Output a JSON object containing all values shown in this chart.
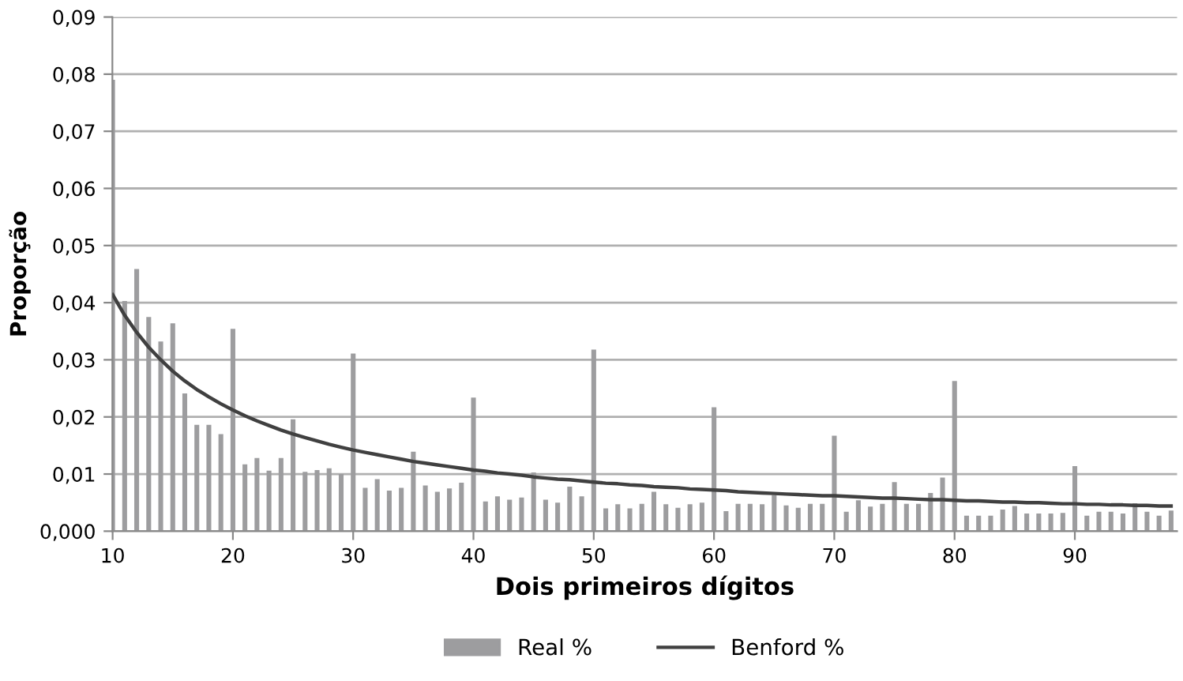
{
  "chart_data": {
    "type": "bar",
    "xlabel": "Dois primeiros dígitos",
    "ylabel": "Proporção",
    "categories": [
      "10",
      null,
      null,
      null,
      null,
      null,
      null,
      null,
      null,
      null,
      "20",
      null,
      null,
      null,
      null,
      null,
      null,
      null,
      null,
      null,
      "30",
      null,
      null,
      null,
      null,
      null,
      null,
      null,
      null,
      null,
      "40",
      null,
      null,
      null,
      null,
      null,
      null,
      null,
      null,
      null,
      "50",
      null,
      null,
      null,
      null,
      null,
      null,
      null,
      null,
      null,
      "60",
      null,
      null,
      null,
      null,
      null,
      null,
      null,
      null,
      null,
      "70",
      null,
      null,
      null,
      null,
      null,
      null,
      null,
      null,
      null,
      "80",
      null,
      null,
      null,
      null,
      null,
      null,
      null,
      null,
      null,
      "90",
      null,
      null,
      null,
      null,
      null,
      null,
      null,
      null
    ],
    "series": [
      {
        "name": "Real %",
        "color": "#9d9d9f",
        "values": [
          0.079,
          0.0403,
          0.0459,
          0.0375,
          0.0332,
          0.0364,
          0.0241,
          0.0186,
          0.0186,
          0.017,
          0.0354,
          0.0117,
          0.0128,
          0.0106,
          0.0128,
          0.0196,
          0.0104,
          0.0107,
          0.011,
          0.01,
          0.0311,
          0.0076,
          0.0091,
          0.0071,
          0.0076,
          0.0139,
          0.008,
          0.0069,
          0.0075,
          0.0085,
          0.0234,
          0.0052,
          0.0061,
          0.0055,
          0.0059,
          0.0103,
          0.0055,
          0.005,
          0.0078,
          0.0061,
          0.0318,
          0.004,
          0.0047,
          0.004,
          0.0048,
          0.0069,
          0.0047,
          0.0041,
          0.0047,
          0.005,
          0.0217,
          0.0035,
          0.0048,
          0.0048,
          0.0047,
          0.0063,
          0.0045,
          0.0041,
          0.0048,
          0.0048,
          0.0167,
          0.0034,
          0.0054,
          0.0043,
          0.0048,
          0.0086,
          0.0048,
          0.0048,
          0.0067,
          0.0094,
          0.0263,
          0.0027,
          0.0027,
          0.0027,
          0.0038,
          0.0044,
          0.0031,
          0.0031,
          0.0031,
          0.0032,
          0.0114,
          0.0027,
          0.0034,
          0.0034,
          0.0031,
          0.0049,
          0.0034,
          0.0027,
          0.0036
        ]
      },
      {
        "name": "Benford %",
        "type": "line",
        "color": "#404040",
        "values": [
          0.0414,
          0.0378,
          0.0348,
          0.0322,
          0.03,
          0.028,
          0.0263,
          0.0248,
          0.0235,
          0.0223,
          0.0212,
          0.0202,
          0.0193,
          0.0185,
          0.0177,
          0.017,
          0.0164,
          0.0158,
          0.0152,
          0.0147,
          0.0142,
          0.0138,
          0.0134,
          0.013,
          0.0126,
          0.0122,
          0.0119,
          0.0116,
          0.0113,
          0.011,
          0.0107,
          0.0105,
          0.0102,
          0.01,
          0.0098,
          0.0095,
          0.0093,
          0.0091,
          0.009,
          0.0088,
          0.0086,
          0.0084,
          0.0083,
          0.0081,
          0.008,
          0.0078,
          0.0077,
          0.0076,
          0.0074,
          0.0073,
          0.0072,
          0.0071,
          0.0069,
          0.0068,
          0.0067,
          0.0066,
          0.0065,
          0.0064,
          0.0063,
          0.0062,
          0.0062,
          0.0061,
          0.006,
          0.0059,
          0.0058,
          0.0058,
          0.0057,
          0.0056,
          0.0055,
          0.0055,
          0.0054,
          0.0053,
          0.0053,
          0.0052,
          0.0051,
          0.0051,
          0.005,
          0.005,
          0.0049,
          0.0048,
          0.0048,
          0.0047,
          0.0047,
          0.0046,
          0.0046,
          0.0045,
          0.0045,
          0.0044,
          0.0044
        ]
      }
    ],
    "ylim": [
      0,
      0.09
    ],
    "yticks": [
      {
        "value": 0,
        "label": "0,000"
      },
      {
        "value": 0.01,
        "label": "0,01"
      },
      {
        "value": 0.02,
        "label": "0,02"
      },
      {
        "value": 0.03,
        "label": "0,03"
      },
      {
        "value": 0.04,
        "label": "0,04"
      },
      {
        "value": 0.05,
        "label": "0,05"
      },
      {
        "value": 0.06,
        "label": "0,06"
      },
      {
        "value": 0.07,
        "label": "0,07"
      },
      {
        "value": 0.08,
        "label": "0,08"
      },
      {
        "value": 0.09,
        "label": "0,09"
      }
    ],
    "grid": "y",
    "legend": "bottom",
    "marker": "none",
    "line_style": "solid"
  }
}
